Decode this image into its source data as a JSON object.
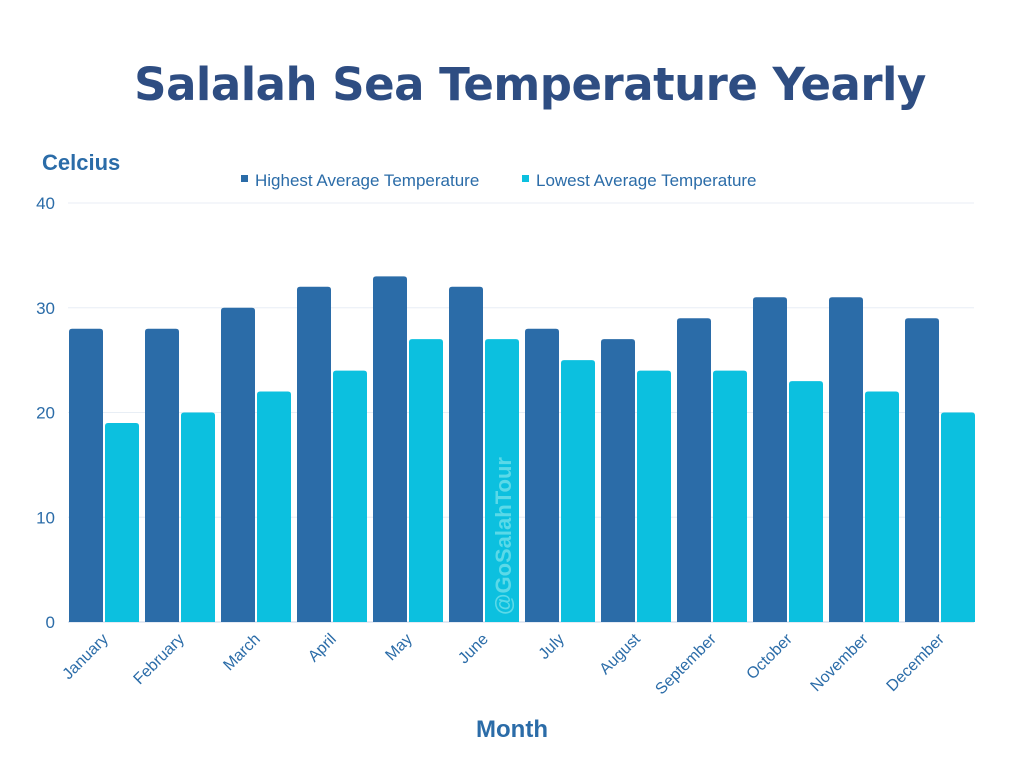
{
  "chart_data": {
    "type": "bar",
    "title": "Salalah Sea Temperature Yearly",
    "xlabel": "Month",
    "ylabel": "Celcius",
    "ylim": [
      0,
      40
    ],
    "yticks": [
      0,
      10,
      20,
      30,
      40
    ],
    "grid": true,
    "legend_placement": "top",
    "categories": [
      "January",
      "February",
      "March",
      "April",
      "May",
      "June",
      "July",
      "August",
      "September",
      "October",
      "November",
      "December"
    ],
    "series": [
      {
        "name": "Highest Average Temperature",
        "color": "#2b6ca8",
        "values": [
          28,
          28,
          30,
          32,
          33,
          32,
          28,
          27,
          29,
          31,
          31,
          29
        ]
      },
      {
        "name": "Lowest Average Temperature",
        "color": "#0cc0df",
        "values": [
          19,
          20,
          22,
          24,
          27,
          27,
          25,
          24,
          24,
          23,
          22,
          20
        ]
      }
    ],
    "watermark": "@GoSalahTour"
  }
}
